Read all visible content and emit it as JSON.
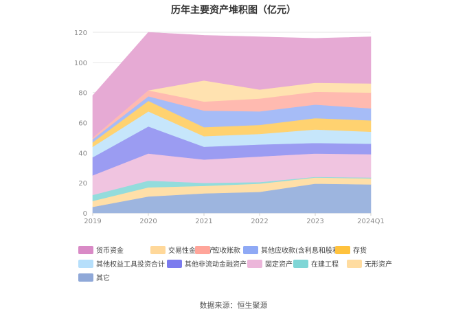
{
  "chart_data": {
    "type": "area",
    "stacked": true,
    "title": "历年主要资产堆积图（亿元）",
    "categories": [
      "2019",
      "2020",
      "2021",
      "2022",
      "2023",
      "2024Q1"
    ],
    "ylim": [
      0,
      120
    ],
    "yticks": [
      "0",
      "20",
      "40",
      "60",
      "80",
      "100",
      "120"
    ],
    "xlabel": "",
    "ylabel": "",
    "series": [
      {
        "name": "其它",
        "color": "#9db5df",
        "values": [
          4,
          11,
          13,
          14,
          19.5,
          19
        ]
      },
      {
        "name": "无形资产",
        "color": "#ffdfa8",
        "values": [
          4,
          6,
          5,
          5.5,
          4,
          4
        ]
      },
      {
        "name": "在建工程",
        "color": "#93dcdc",
        "values": [
          4,
          4.5,
          2,
          1,
          0.5,
          0.5
        ]
      },
      {
        "name": "固定资产",
        "color": "#f0c4e0",
        "values": [
          13,
          18,
          15.5,
          17,
          15.5,
          15.5
        ]
      },
      {
        "name": "其他非流动金融资产",
        "color": "#9b9cf2",
        "values": [
          12,
          18,
          8.5,
          8,
          7,
          7
        ]
      },
      {
        "name": "其他权益工具投资合计",
        "color": "#c6e6fb",
        "values": [
          7,
          10,
          7,
          7,
          9,
          8
        ]
      },
      {
        "name": "存货",
        "color": "#ffd270",
        "values": [
          3,
          7,
          6,
          6,
          7.5,
          7.5
        ]
      },
      {
        "name": "其他应收款(含利息和股利)",
        "color": "#a6bcf7",
        "values": [
          2,
          3,
          11,
          9,
          9,
          8
        ]
      },
      {
        "name": "应收账款",
        "color": "#ffbab0",
        "values": [
          1,
          4,
          6,
          8.5,
          8.5,
          10.5
        ]
      },
      {
        "name": "交易性金融资产",
        "color": "#ffe2b0",
        "values": [
          0,
          0,
          14,
          6,
          6,
          6
        ]
      },
      {
        "name": "货币资金",
        "color": "#e6aad4",
        "values": [
          28,
          38.5,
          30,
          35,
          29.5,
          31
        ]
      }
    ],
    "legend_order": [
      "货币资金",
      "交易性金融资产",
      "应收账款",
      "其他应收款(含利息和股利)",
      "存货",
      "其他权益工具投资合计",
      "其他非流动金融资产",
      "固定资产",
      "在建工程",
      "无形资产",
      "其它"
    ],
    "legend_colors": {
      "货币资金": "#d98ac6",
      "交易性金融资产": "#ffd89a",
      "应收账款": "#ffa59a",
      "其他应收款(含利息和股利)": "#8fa9f5",
      "存货": "#ffc23d",
      "其他权益工具投资合计": "#b6dffb",
      "其他非流动金融资产": "#7b7bee",
      "固定资产": "#ecb6da",
      "在建工程": "#7fd6d6",
      "无形资产": "#ffdca0",
      "其它": "#8fa8d8"
    },
    "legend_position": "bottom"
  },
  "source_text": "数据来源：恒生聚源"
}
